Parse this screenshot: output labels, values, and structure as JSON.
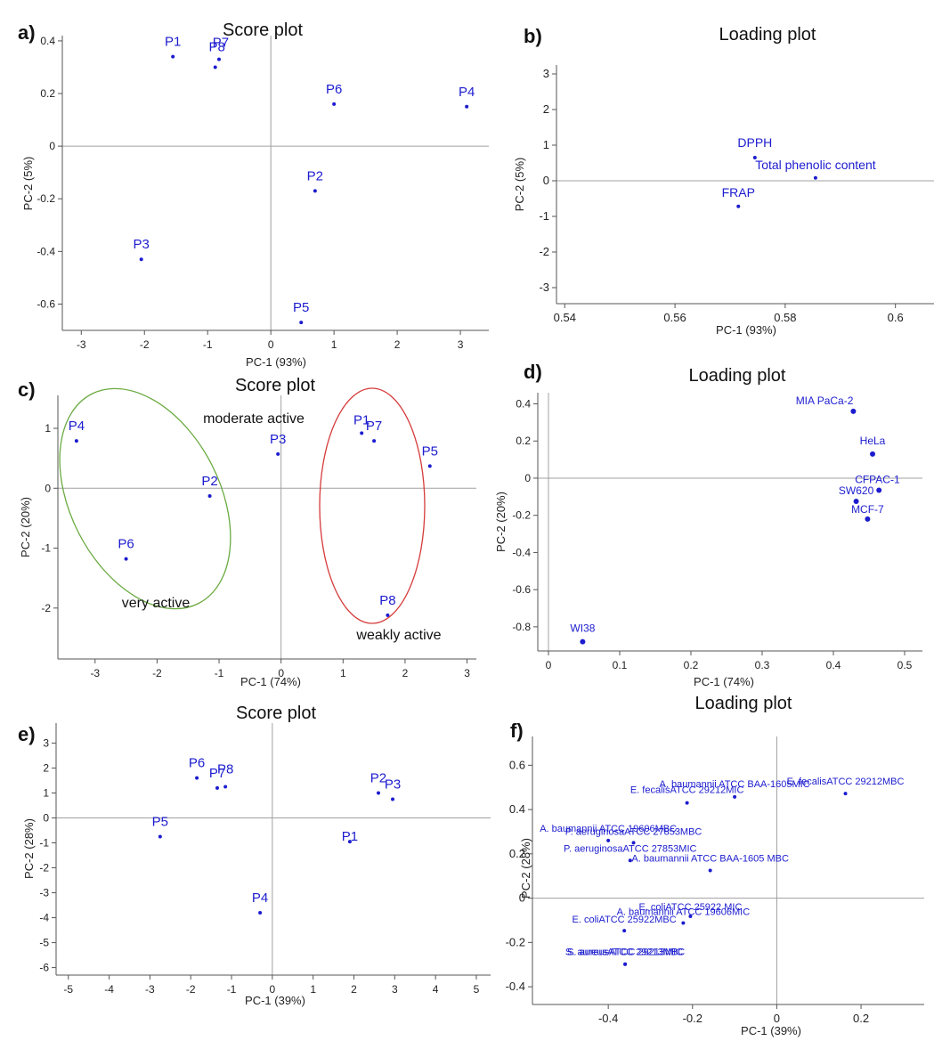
{
  "colors": {
    "point": "#1c1ccf",
    "axis": "#555555",
    "zero_line": "#a0a0a0",
    "green_ellipse": "#6aaa40",
    "red_ellipse": "#d63a3a"
  },
  "chart_data": [
    {
      "id": "a",
      "panel_label": "a)",
      "type": "scatter",
      "title": "Score plot",
      "xlabel": "PC-1 (93%)",
      "ylabel": "PC-2 (5%)",
      "xlim": [
        -3.3,
        3.45
      ],
      "ylim": [
        -0.7,
        0.42
      ],
      "xticks": [
        -3,
        -2,
        -1,
        0,
        1,
        2,
        3
      ],
      "xtick_labels": [
        "-3",
        "-2",
        "-1",
        "0",
        "1",
        "2",
        "3"
      ],
      "yticks": [
        -0.6,
        -0.4,
        -0.2,
        0,
        0.2,
        0.4
      ],
      "ytick_labels": [
        "-0.6",
        "-0.4",
        "-0.2",
        "0",
        "0.2",
        "0.4"
      ],
      "points": [
        {
          "label": "P1",
          "x": -1.55,
          "y": 0.34
        },
        {
          "label": "P7",
          "x": -0.82,
          "y": 0.33
        },
        {
          "label": "P8",
          "x": -0.88,
          "y": 0.3
        },
        {
          "label": "P6",
          "x": 1.0,
          "y": 0.16
        },
        {
          "label": "P4",
          "x": 3.1,
          "y": 0.15
        },
        {
          "label": "P2",
          "x": 0.7,
          "y": -0.17
        },
        {
          "label": "P3",
          "x": -2.05,
          "y": -0.43
        },
        {
          "label": "P5",
          "x": 0.48,
          "y": -0.67
        }
      ]
    },
    {
      "id": "b",
      "panel_label": "b)",
      "type": "scatter",
      "title": "Loading plot",
      "xlabel": "PC-1 (93%)",
      "ylabel": "PC-2 (5%)",
      "xlim": [
        0.5385,
        0.607
      ],
      "ylim": [
        -3.45,
        3.25
      ],
      "xticks": [
        0.54,
        0.56,
        0.58,
        0.6
      ],
      "xtick_labels": [
        "0.54",
        "0.56",
        "0.58",
        "0.6"
      ],
      "yticks": [
        -3,
        -2,
        -1,
        0,
        1,
        2,
        3
      ],
      "ytick_labels": [
        "-3",
        "-2",
        "-1",
        "0",
        "1",
        "2",
        "3"
      ],
      "points": [
        {
          "label": "DPPH",
          "x": 0.5745,
          "y": 0.65
        },
        {
          "label": "Total phenolic content",
          "x": 0.5855,
          "y": 0.08
        },
        {
          "label": "FRAP",
          "x": 0.5715,
          "y": -0.72
        }
      ]
    },
    {
      "id": "c",
      "panel_label": "c)",
      "type": "scatter",
      "title": "Score plot",
      "xlabel": "PC-1 (74%)",
      "ylabel": "PC-2 (20%)",
      "xlim": [
        -3.6,
        3.15
      ],
      "ylim": [
        -2.85,
        1.55
      ],
      "xticks": [
        -3,
        -2,
        -1,
        0,
        1,
        2,
        3
      ],
      "xtick_labels": [
        "-3",
        "-2",
        "-1",
        "0",
        "1",
        "2",
        "3"
      ],
      "yticks": [
        -2,
        -1,
        0,
        1
      ],
      "ytick_labels": [
        "-2",
        "-1",
        "0",
        "1"
      ],
      "points": [
        {
          "label": "P4",
          "x": -3.3,
          "y": 0.79
        },
        {
          "label": "P2",
          "x": -1.15,
          "y": -0.13
        },
        {
          "label": "P6",
          "x": -2.5,
          "y": -1.18
        },
        {
          "label": "P3",
          "x": -0.05,
          "y": 0.57
        },
        {
          "label": "P1",
          "x": 1.3,
          "y": 0.92
        },
        {
          "label": "P7",
          "x": 1.5,
          "y": 0.79
        },
        {
          "label": "P5",
          "x": 2.4,
          "y": 0.37
        },
        {
          "label": "P8",
          "x": 1.72,
          "y": -2.12
        }
      ],
      "annotations": [
        "moderate active",
        "very active",
        "weakly active"
      ]
    },
    {
      "id": "d",
      "panel_label": "d)",
      "type": "scatter",
      "title": "Loading plot",
      "xlabel": "PC-1 (74%)",
      "ylabel": "PC-2 (20%)",
      "xlim": [
        -0.015,
        0.525
      ],
      "ylim": [
        -0.93,
        0.46
      ],
      "xticks": [
        0,
        0.1,
        0.2,
        0.3,
        0.4,
        0.5
      ],
      "xtick_labels": [
        "0",
        "0.1",
        "0.2",
        "0.3",
        "0.4",
        "0.5"
      ],
      "yticks": [
        -0.8,
        -0.6,
        -0.4,
        -0.2,
        0,
        0.2,
        0.4
      ],
      "ytick_labels": [
        "-0.8",
        "-0.6",
        "-0.4",
        "-0.2",
        "0",
        "0.2",
        "0.4"
      ],
      "points": [
        {
          "label": "MIA PaCa-2",
          "x": 0.428,
          "y": 0.36
        },
        {
          "label": "HeLa",
          "x": 0.455,
          "y": 0.13
        },
        {
          "label": "CFPAC-1",
          "x": 0.464,
          "y": -0.065
        },
        {
          "label": "SW620",
          "x": 0.432,
          "y": -0.125
        },
        {
          "label": "MCF-7",
          "x": 0.448,
          "y": -0.22
        },
        {
          "label": "WI38",
          "x": 0.048,
          "y": -0.88
        }
      ]
    },
    {
      "id": "e",
      "panel_label": "e)",
      "type": "scatter",
      "title": "Score plot",
      "xlabel": "PC-1 (39%)",
      "ylabel": "PC-2 (28%)",
      "xlim": [
        -5.3,
        5.35
      ],
      "ylim": [
        -6.3,
        3.8
      ],
      "xticks": [
        -5,
        -4,
        -3,
        -2,
        -1,
        0,
        1,
        2,
        3,
        4,
        5
      ],
      "xtick_labels": [
        "-5",
        "-4",
        "-3",
        "-2",
        "-1",
        "0",
        "1",
        "2",
        "3",
        "4",
        "5"
      ],
      "yticks": [
        -6,
        -5,
        -4,
        -3,
        -2,
        -1,
        0,
        1,
        2,
        3
      ],
      "ytick_labels": [
        "-6",
        "-5",
        "-4",
        "-3",
        "-2",
        "-1",
        "0",
        "1",
        "2",
        "3"
      ],
      "points": [
        {
          "label": "P6",
          "x": -1.85,
          "y": 1.6
        },
        {
          "label": "P7",
          "x": -1.35,
          "y": 1.2
        },
        {
          "label": "P8",
          "x": -1.15,
          "y": 1.25
        },
        {
          "label": "P2",
          "x": 2.6,
          "y": 1.0
        },
        {
          "label": "P3",
          "x": 2.95,
          "y": 0.75
        },
        {
          "label": "P5",
          "x": -2.75,
          "y": -0.75
        },
        {
          "label": "P1",
          "x": 1.9,
          "y": -0.95
        },
        {
          "label": "P4",
          "x": -0.3,
          "y": -3.8
        }
      ]
    },
    {
      "id": "f",
      "panel_label": "f)",
      "type": "scatter",
      "title": "Loading plot",
      "xlabel": "PC-1 (39%)",
      "ylabel": "PC-2 (28%)",
      "xlim": [
        -0.58,
        0.35
      ],
      "ylim": [
        -0.48,
        0.73
      ],
      "xticks": [
        -0.4,
        -0.2,
        0,
        0.2
      ],
      "xtick_labels": [
        "-0.4",
        "-0.2",
        "0",
        "0.2"
      ],
      "yticks": [
        -0.4,
        -0.2,
        0,
        0.2,
        0.4,
        0.6
      ],
      "ytick_labels": [
        "-0.4",
        "-0.2",
        "0",
        "0.2",
        "0.4",
        "0.6"
      ],
      "points": [
        {
          "label": "E. fecalisATCC 29212MBC",
          "x": 0.163,
          "y": 0.472
        },
        {
          "label": "A. baumannii ATCC BAA-1605MIC",
          "x": -0.1,
          "y": 0.457
        },
        {
          "label": "E. fecalisATCC 29212MIC",
          "x": -0.213,
          "y": 0.43
        },
        {
          "label": "A. baumannii ATCC 19606MBC",
          "x": -0.4,
          "y": 0.26
        },
        {
          "label": "P. aeruginosaATCC 27853MBC",
          "x": -0.34,
          "y": 0.25
        },
        {
          "label": "P. aeruginosaATCC 27853MIC",
          "x": -0.348,
          "y": 0.17
        },
        {
          "label": "A. baumannii ATCC BAA-1605 MBC",
          "x": -0.158,
          "y": 0.125
        },
        {
          "label": "A. baumannii ATCC 19606MIC",
          "x": -0.222,
          "y": -0.112
        },
        {
          "label": "E. coliATCC 25922 MIC",
          "x": -0.205,
          "y": -0.082
        },
        {
          "label": "E. coliATCC 25922MBC",
          "x": -0.362,
          "y": -0.147
        },
        {
          "label": "S. aureusATCC 29213MBC",
          "x": -0.36,
          "y": -0.298
        },
        {
          "label": "S. aureusATCC 29213MIC",
          "x": -0.36,
          "y": -0.298
        }
      ]
    }
  ]
}
